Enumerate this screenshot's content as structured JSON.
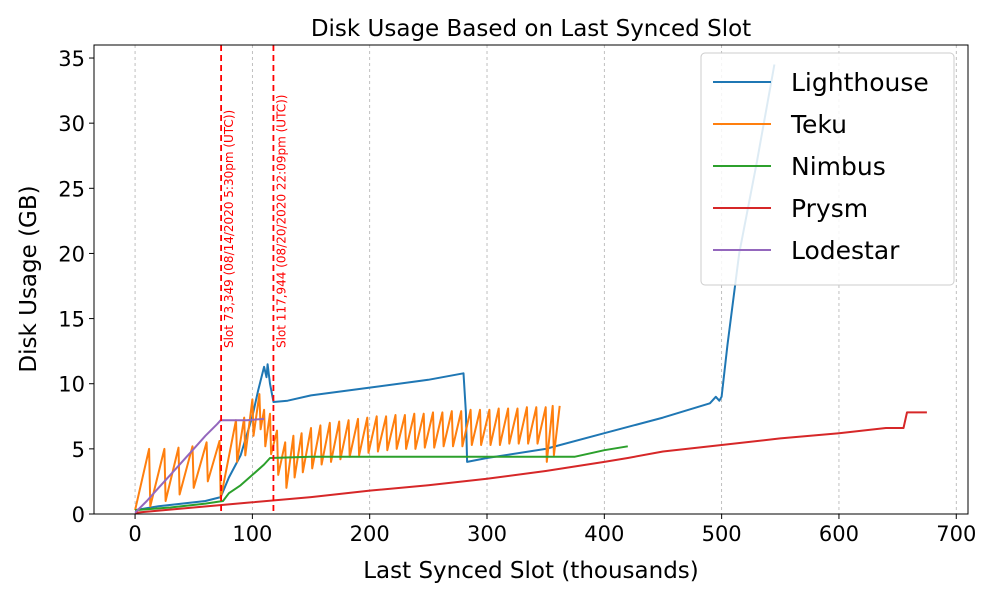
{
  "chart_data": {
    "type": "line",
    "title": "Disk Usage Based on Last Synced Slot",
    "xlabel": "Last Synced Slot (thousands)",
    "ylabel": "Disk Usage (GB)",
    "xlim": [
      -35,
      710
    ],
    "ylim": [
      0,
      36
    ],
    "xticks": [
      0,
      100,
      200,
      300,
      400,
      500,
      600,
      700
    ],
    "yticks": [
      0,
      5,
      10,
      15,
      20,
      25,
      30,
      35
    ],
    "grid": "x-axis vertical dashed gridlines",
    "legend_position": "top-right",
    "annotations": [
      {
        "x": 73.349,
        "text": "Slot 73,349 (08/14/2020 5:30pm (UTC))",
        "color": "#ff0000",
        "style": "dashed vertical line"
      },
      {
        "x": 117.944,
        "text": "Slot 117,944 (08/20/2020 22:09pm (UTC))",
        "color": "#ff0000",
        "style": "dashed vertical line"
      }
    ],
    "series": [
      {
        "name": "Lighthouse",
        "color": "#1f77b4",
        "points": [
          [
            0,
            0.3
          ],
          [
            20,
            0.6
          ],
          [
            40,
            0.8
          ],
          [
            60,
            1.0
          ],
          [
            73,
            1.3
          ],
          [
            80,
            2.8
          ],
          [
            90,
            4.5
          ],
          [
            100,
            7.5
          ],
          [
            105,
            9.5
          ],
          [
            110,
            11.3
          ],
          [
            112,
            10.5
          ],
          [
            113,
            11.5
          ],
          [
            115,
            10.0
          ],
          [
            118,
            8.6
          ],
          [
            130,
            8.7
          ],
          [
            150,
            9.1
          ],
          [
            200,
            9.7
          ],
          [
            250,
            10.3
          ],
          [
            280,
            10.8
          ],
          [
            282,
            7.8
          ],
          [
            283,
            4.0
          ],
          [
            300,
            4.3
          ],
          [
            350,
            5.0
          ],
          [
            400,
            6.2
          ],
          [
            450,
            7.4
          ],
          [
            490,
            8.5
          ],
          [
            495,
            9.0
          ],
          [
            498,
            8.7
          ],
          [
            500,
            9.0
          ],
          [
            505,
            13.0
          ],
          [
            515,
            20.0
          ],
          [
            530,
            27.0
          ],
          [
            545,
            34.5
          ]
        ]
      },
      {
        "name": "Teku",
        "color": "#ff7f0e",
        "points": [
          [
            0,
            0.3
          ],
          [
            12,
            5.0
          ],
          [
            13,
            0.6
          ],
          [
            25,
            5.0
          ],
          [
            26,
            1.0
          ],
          [
            37,
            5.1
          ],
          [
            38,
            1.5
          ],
          [
            49,
            5.2
          ],
          [
            50,
            2.0
          ],
          [
            61,
            5.5
          ],
          [
            62,
            2.5
          ],
          [
            72,
            5.6
          ],
          [
            73,
            1.2
          ],
          [
            86,
            7.2
          ],
          [
            87,
            4.0
          ],
          [
            93,
            7.4
          ],
          [
            94,
            4.5
          ],
          [
            100,
            8.8
          ],
          [
            101,
            6.0
          ],
          [
            106,
            9.2
          ],
          [
            107,
            6.5
          ],
          [
            110,
            8.0
          ],
          [
            111,
            5.2
          ],
          [
            115,
            7.7
          ],
          [
            116,
            4.6
          ],
          [
            121,
            6.4
          ],
          [
            122,
            3.0
          ],
          [
            128,
            5.5
          ],
          [
            129,
            2.0
          ],
          [
            135,
            6.0
          ],
          [
            136,
            2.8
          ],
          [
            142,
            6.2
          ],
          [
            143,
            3.2
          ],
          [
            150,
            6.6
          ],
          [
            151,
            3.5
          ],
          [
            158,
            6.8
          ],
          [
            159,
            3.8
          ],
          [
            166,
            7.0
          ],
          [
            167,
            4.0
          ],
          [
            174,
            7.1
          ],
          [
            175,
            4.2
          ],
          [
            182,
            7.2
          ],
          [
            183,
            4.4
          ],
          [
            190,
            7.3
          ],
          [
            191,
            4.5
          ],
          [
            198,
            7.4
          ],
          [
            199,
            4.7
          ],
          [
            206,
            7.5
          ],
          [
            207,
            4.8
          ],
          [
            214,
            7.5
          ],
          [
            215,
            4.9
          ],
          [
            222,
            7.6
          ],
          [
            223,
            5.0
          ],
          [
            230,
            7.6
          ],
          [
            231,
            5.0
          ],
          [
            238,
            7.7
          ],
          [
            239,
            5.0
          ],
          [
            246,
            7.7
          ],
          [
            247,
            5.1
          ],
          [
            254,
            7.8
          ],
          [
            255,
            5.1
          ],
          [
            262,
            7.8
          ],
          [
            263,
            5.2
          ],
          [
            270,
            7.9
          ],
          [
            271,
            5.2
          ],
          [
            278,
            7.9
          ],
          [
            279,
            5.2
          ],
          [
            286,
            8.0
          ],
          [
            287,
            5.3
          ],
          [
            294,
            8.0
          ],
          [
            295,
            5.3
          ],
          [
            302,
            8.0
          ],
          [
            303,
            5.3
          ],
          [
            310,
            8.1
          ],
          [
            311,
            5.3
          ],
          [
            318,
            8.1
          ],
          [
            319,
            5.4
          ],
          [
            326,
            8.1
          ],
          [
            327,
            5.4
          ],
          [
            334,
            8.2
          ],
          [
            335,
            5.4
          ],
          [
            342,
            8.2
          ],
          [
            343,
            5.4
          ],
          [
            350,
            8.2
          ],
          [
            351,
            4.0
          ],
          [
            356,
            8.3
          ],
          [
            357,
            4.5
          ],
          [
            362,
            8.3
          ]
        ]
      },
      {
        "name": "Nimbus",
        "color": "#2ca02c",
        "points": [
          [
            0,
            0.3
          ],
          [
            30,
            0.5
          ],
          [
            60,
            0.8
          ],
          [
            75,
            1.0
          ],
          [
            80,
            1.6
          ],
          [
            90,
            2.2
          ],
          [
            100,
            3.0
          ],
          [
            110,
            3.8
          ],
          [
            115,
            4.3
          ],
          [
            150,
            4.4
          ],
          [
            200,
            4.4
          ],
          [
            250,
            4.4
          ],
          [
            300,
            4.4
          ],
          [
            350,
            4.4
          ],
          [
            375,
            4.4
          ],
          [
            390,
            4.7
          ],
          [
            400,
            4.9
          ],
          [
            420,
            5.2
          ]
        ]
      },
      {
        "name": "Prysm",
        "color": "#d62728",
        "points": [
          [
            0,
            0.1
          ],
          [
            50,
            0.5
          ],
          [
            100,
            0.9
          ],
          [
            150,
            1.3
          ],
          [
            200,
            1.8
          ],
          [
            250,
            2.2
          ],
          [
            300,
            2.7
          ],
          [
            350,
            3.3
          ],
          [
            400,
            4.0
          ],
          [
            420,
            4.3
          ],
          [
            450,
            4.8
          ],
          [
            500,
            5.3
          ],
          [
            550,
            5.8
          ],
          [
            600,
            6.2
          ],
          [
            640,
            6.6
          ],
          [
            655,
            6.6
          ],
          [
            658,
            7.8
          ],
          [
            675,
            7.8
          ]
        ]
      },
      {
        "name": "Lodestar",
        "color": "#9467bd",
        "points": [
          [
            0,
            0.1
          ],
          [
            10,
            1.0
          ],
          [
            20,
            2.0
          ],
          [
            30,
            3.0
          ],
          [
            40,
            4.0
          ],
          [
            50,
            5.0
          ],
          [
            60,
            6.0
          ],
          [
            70,
            6.9
          ],
          [
            73,
            7.2
          ],
          [
            80,
            7.2
          ],
          [
            95,
            7.2
          ],
          [
            110,
            7.3
          ]
        ]
      }
    ]
  }
}
